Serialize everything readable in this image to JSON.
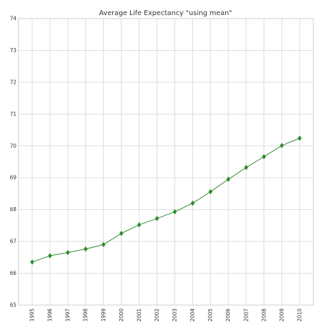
{
  "chart_data": {
    "type": "line",
    "title": "Average Life Expectancy \"using mean\"",
    "xlabel": "",
    "ylabel": "",
    "x": [
      "1995",
      "1996",
      "1997",
      "1998",
      "1999",
      "2000",
      "2001",
      "2002",
      "2003",
      "2004",
      "2005",
      "2006",
      "2007",
      "2008",
      "2009",
      "2010"
    ],
    "series": [
      {
        "values": [
          66.35,
          66.55,
          66.65,
          66.76,
          66.9,
          67.25,
          67.52,
          67.72,
          67.93,
          68.2,
          68.56,
          68.95,
          69.32,
          69.66,
          70.01,
          70.24
        ],
        "color": "#2e8b2e",
        "marker": "diamond"
      }
    ],
    "ylim": [
      65,
      74
    ],
    "yticks": [
      "65",
      "66",
      "67",
      "68",
      "69",
      "70",
      "71",
      "72",
      "73",
      "74"
    ],
    "grid": true,
    "legend": "none"
  }
}
